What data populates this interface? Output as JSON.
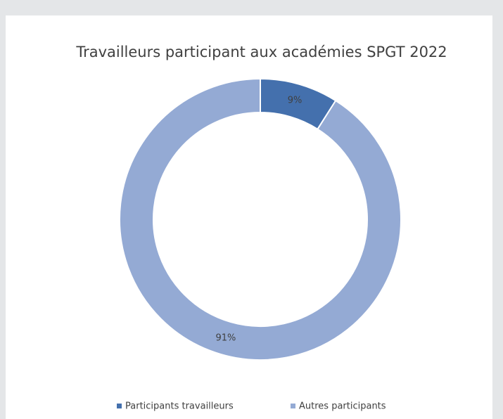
{
  "chart_data": {
    "type": "donut",
    "title": "Travailleurs participant aux académies SPGT 2022",
    "categories": [
      "Participants travailleurs",
      "Autres participants"
    ],
    "values": [
      9,
      91
    ],
    "value_labels": [
      "9%",
      "91%"
    ],
    "colors": [
      "#4470ad",
      "#94aad4"
    ],
    "legend": "bottom"
  }
}
